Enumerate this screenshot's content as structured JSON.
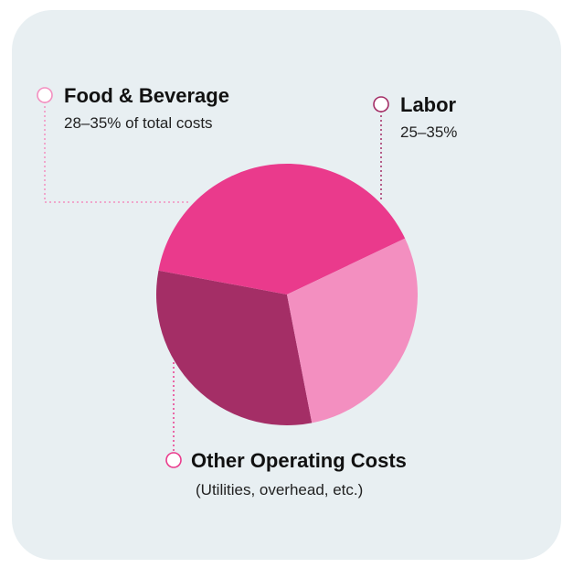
{
  "chart_data": {
    "type": "pie",
    "slices": [
      {
        "key": "labor",
        "value": 31,
        "color": "#a42e66"
      },
      {
        "key": "other",
        "value": 40,
        "color": "#ea3a8c"
      },
      {
        "key": "food",
        "value": 29,
        "color": "#f38fc0"
      }
    ],
    "labels": {
      "food": {
        "title": "Food & Beverage",
        "sub": "28–35% of total costs"
      },
      "labor": {
        "title": "Labor",
        "sub": "25–35%"
      },
      "other": {
        "title": "Other Operating Costs",
        "sub": "(Utilities, overhead, etc.)"
      }
    }
  },
  "colors": {
    "card_background": "#e8eff2",
    "leader_line_food": "#f38fc0",
    "leader_line_labor": "#a42e66",
    "leader_line_other": "#ea3a8c"
  }
}
